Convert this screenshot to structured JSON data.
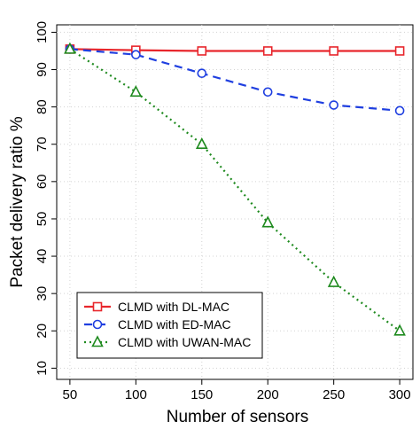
{
  "chart_data": {
    "type": "line",
    "xlabel": "Number of sensors",
    "ylabel": "Packet delivery ratio %",
    "x": [
      50,
      100,
      150,
      200,
      250,
      300
    ],
    "xticks": [
      50,
      100,
      150,
      200,
      250,
      300
    ],
    "yticks": [
      10,
      20,
      30,
      40,
      50,
      60,
      70,
      80,
      90,
      100
    ],
    "xlim": [
      40,
      310
    ],
    "ylim": [
      7,
      102
    ],
    "grid": true,
    "legend_position": "bottom-left",
    "series": [
      {
        "name": "CLMD with DL-MAC",
        "values": [
          95.5,
          95.2,
          95,
          95,
          95,
          95
        ],
        "color": "#e8262c",
        "line": "solid",
        "marker": "square"
      },
      {
        "name": "CLMD with ED-MAC",
        "values": [
          95.5,
          94,
          89,
          84,
          80.5,
          79
        ],
        "color": "#1f3fe0",
        "line": "dashed",
        "marker": "circle"
      },
      {
        "name": "CLMD with UWAN-MAC",
        "values": [
          95.5,
          84,
          70,
          49,
          33,
          20
        ],
        "color": "#1e8a1e",
        "line": "dotted",
        "marker": "triangle"
      }
    ]
  }
}
